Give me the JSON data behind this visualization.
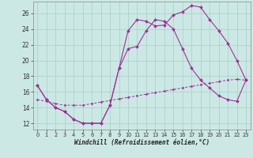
{
  "xlabel": "Windchill (Refroidissement éolien,°C)",
  "background_color": "#cce8e4",
  "grid_color": "#aaccc8",
  "line_color": "#993399",
  "xlim": [
    -0.5,
    23.5
  ],
  "ylim": [
    11.2,
    27.5
  ],
  "yticks": [
    12,
    14,
    16,
    18,
    20,
    22,
    24,
    26
  ],
  "xticks": [
    0,
    1,
    2,
    3,
    4,
    5,
    6,
    7,
    8,
    9,
    10,
    11,
    12,
    13,
    14,
    15,
    16,
    17,
    18,
    19,
    20,
    21,
    22,
    23
  ],
  "line1_x": [
    0,
    1,
    2,
    3,
    4,
    5,
    6,
    7,
    8,
    9,
    10,
    11,
    12,
    13,
    14,
    15,
    16,
    17,
    18,
    19,
    20,
    21,
    22,
    23
  ],
  "line1_y": [
    16.8,
    15.0,
    14.0,
    13.5,
    12.5,
    12.0,
    12.0,
    12.0,
    14.3,
    19.0,
    21.5,
    21.8,
    23.8,
    25.2,
    25.0,
    24.0,
    21.5,
    19.0,
    17.5,
    16.5,
    15.5,
    15.0,
    14.8,
    17.5
  ],
  "line2_x": [
    0,
    1,
    2,
    3,
    4,
    5,
    6,
    7,
    8,
    9,
    10,
    11,
    12,
    13,
    14,
    15,
    16,
    17,
    18,
    19,
    20,
    21,
    22,
    23
  ],
  "line2_y": [
    16.8,
    15.0,
    14.0,
    13.5,
    12.5,
    12.0,
    12.0,
    12.0,
    14.3,
    19.0,
    23.8,
    25.2,
    25.0,
    24.4,
    24.5,
    25.8,
    26.2,
    27.0,
    26.8,
    25.2,
    23.8,
    22.2,
    20.0,
    17.5
  ],
  "line3_x": [
    0,
    1,
    2,
    3,
    4,
    5,
    6,
    7,
    8,
    9,
    10,
    11,
    12,
    13,
    14,
    15,
    16,
    17,
    18,
    19,
    20,
    21,
    22,
    23
  ],
  "line3_y": [
    15.0,
    14.8,
    14.5,
    14.3,
    14.3,
    14.3,
    14.5,
    14.7,
    14.9,
    15.1,
    15.3,
    15.5,
    15.7,
    15.9,
    16.1,
    16.3,
    16.5,
    16.7,
    16.9,
    17.1,
    17.3,
    17.5,
    17.6,
    17.5
  ]
}
